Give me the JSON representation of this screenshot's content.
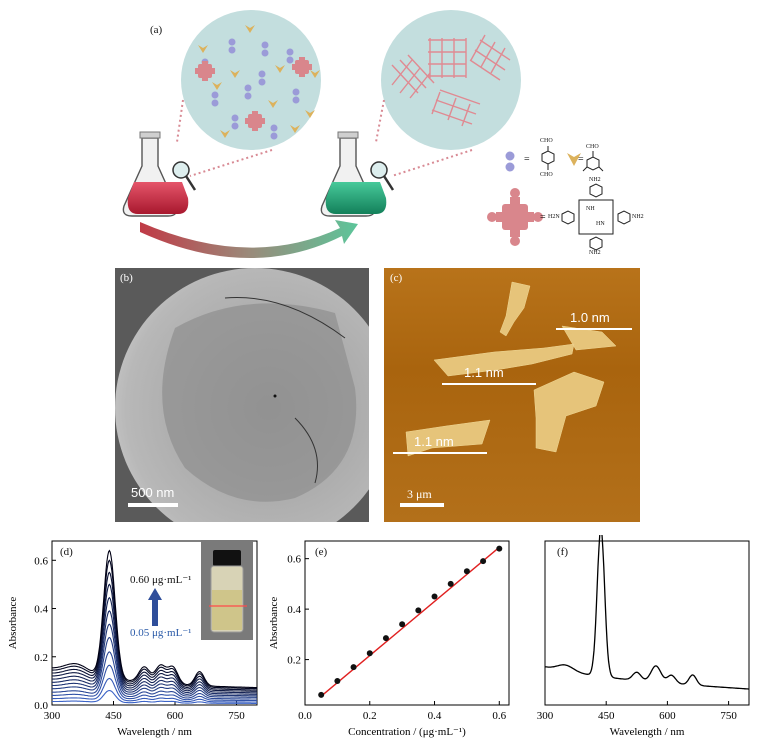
{
  "panel_a": {
    "label": "(a)",
    "legend": {
      "equals": "=",
      "cho": "CHO",
      "nh2": "NH2",
      "h2n": "H2N",
      "nh": "NH",
      "hn": "HN",
      "n": "N"
    }
  },
  "panel_b": {
    "label": "(b)",
    "scalebar": "500 nm"
  },
  "panel_c": {
    "label": "(c)",
    "scalebar": "3 μm",
    "heights": [
      "1.0 nm",
      "1.1 nm",
      "1.1 nm"
    ]
  },
  "chart_data": [
    {
      "id": "d",
      "label": "(d)",
      "type": "line",
      "xlabel": "Wavelength / nm",
      "ylabel": "Absorbance",
      "xlim": [
        300,
        800
      ],
      "ylim": [
        0.0,
        0.68
      ],
      "xticks": [
        "300",
        "450",
        "600",
        "750"
      ],
      "yticks": [
        "0.0",
        "0.2",
        "0.4",
        "0.6"
      ],
      "annotation_top": "0.60 μg·mL⁻¹",
      "annotation_bottom": "0.05 μg·mL⁻¹",
      "series_peak_values": [
        0.06,
        0.11,
        0.165,
        0.22,
        0.28,
        0.335,
        0.39,
        0.445,
        0.5,
        0.55,
        0.6,
        0.64
      ],
      "concentrations": [
        0.05,
        0.1,
        0.15,
        0.2,
        0.25,
        0.3,
        0.35,
        0.4,
        0.45,
        0.5,
        0.55,
        0.6
      ]
    },
    {
      "id": "e",
      "label": "(e)",
      "type": "scatter",
      "xlabel": "Concentration / (μg·mL⁻¹)",
      "ylabel": "Absorbance",
      "xlim": [
        0.0,
        0.63
      ],
      "ylim": [
        0.02,
        0.67
      ],
      "xticks": [
        "0.0",
        "0.2",
        "0.4",
        "0.6"
      ],
      "yticks": [
        "0.2",
        "0.4",
        "0.6"
      ],
      "x": [
        0.05,
        0.1,
        0.15,
        0.2,
        0.25,
        0.3,
        0.35,
        0.4,
        0.45,
        0.5,
        0.55,
        0.6
      ],
      "y": [
        0.06,
        0.115,
        0.17,
        0.225,
        0.285,
        0.34,
        0.395,
        0.45,
        0.5,
        0.55,
        0.59,
        0.64
      ],
      "fit_line": [
        [
          0.05,
          0.055
        ],
        [
          0.6,
          0.645
        ]
      ]
    },
    {
      "id": "f",
      "label": "(f)",
      "type": "line",
      "xlabel": "Wavelength / nm",
      "xlim": [
        300,
        800
      ],
      "xticks": [
        "300",
        "450",
        "600",
        "750"
      ]
    }
  ]
}
